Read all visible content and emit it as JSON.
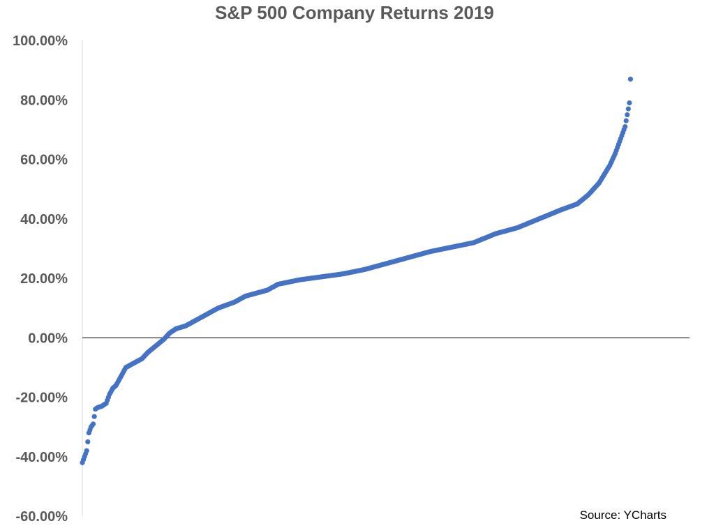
{
  "chart_data": {
    "type": "scatter",
    "title": "S&P 500 Company Returns 2019",
    "xlabel": "",
    "ylabel": "",
    "ylim": [
      -60,
      100
    ],
    "xlim": [
      0,
      505
    ],
    "y_ticks": [
      {
        "value": 100,
        "label": "100.00%"
      },
      {
        "value": 80,
        "label": "80.00%"
      },
      {
        "value": 60,
        "label": "60.00%"
      },
      {
        "value": 40,
        "label": "40.00%"
      },
      {
        "value": 20,
        "label": "20.00%"
      },
      {
        "value": 0,
        "label": "0.00%"
      },
      {
        "value": -20,
        "label": "-20.00%"
      },
      {
        "value": -40,
        "label": "-40.00%"
      },
      {
        "value": -60,
        "label": "-60.00%"
      }
    ],
    "curve_keypoints": [
      [
        0,
        -42
      ],
      [
        2,
        -40
      ],
      [
        4,
        -38
      ],
      [
        6,
        -32
      ],
      [
        8,
        -30
      ],
      [
        10,
        -29
      ],
      [
        12,
        -24
      ],
      [
        14,
        -23.5
      ],
      [
        18,
        -23
      ],
      [
        22,
        -22
      ],
      [
        25,
        -19
      ],
      [
        28,
        -17
      ],
      [
        31,
        -16
      ],
      [
        34,
        -14
      ],
      [
        37,
        -12
      ],
      [
        40,
        -10
      ],
      [
        45,
        -9
      ],
      [
        50,
        -8
      ],
      [
        55,
        -7
      ],
      [
        60,
        -5
      ],
      [
        65,
        -3.5
      ],
      [
        70,
        -2
      ],
      [
        75,
        -0.5
      ],
      [
        80,
        1.5
      ],
      [
        86,
        3
      ],
      [
        95,
        4
      ],
      [
        105,
        6
      ],
      [
        115,
        8
      ],
      [
        125,
        10
      ],
      [
        140,
        12
      ],
      [
        150,
        14
      ],
      [
        160,
        15
      ],
      [
        170,
        16
      ],
      [
        180,
        18
      ],
      [
        200,
        19.5
      ],
      [
        220,
        20.5
      ],
      [
        240,
        21.5
      ],
      [
        260,
        23
      ],
      [
        280,
        25
      ],
      [
        300,
        27
      ],
      [
        320,
        29
      ],
      [
        340,
        30.5
      ],
      [
        360,
        32
      ],
      [
        380,
        35
      ],
      [
        400,
        37
      ],
      [
        420,
        40
      ],
      [
        440,
        43
      ],
      [
        455,
        45
      ],
      [
        465,
        48
      ],
      [
        470,
        50
      ],
      [
        475,
        52
      ],
      [
        480,
        55
      ],
      [
        485,
        58
      ],
      [
        490,
        62
      ],
      [
        493,
        65
      ],
      [
        496,
        68
      ],
      [
        499,
        71
      ],
      [
        501,
        75
      ],
      [
        503,
        79
      ],
      [
        504,
        87
      ]
    ],
    "point_count": 505,
    "marker_color": "#4472C4",
    "grid": false,
    "legend": "none",
    "source": "Source: YCharts"
  }
}
